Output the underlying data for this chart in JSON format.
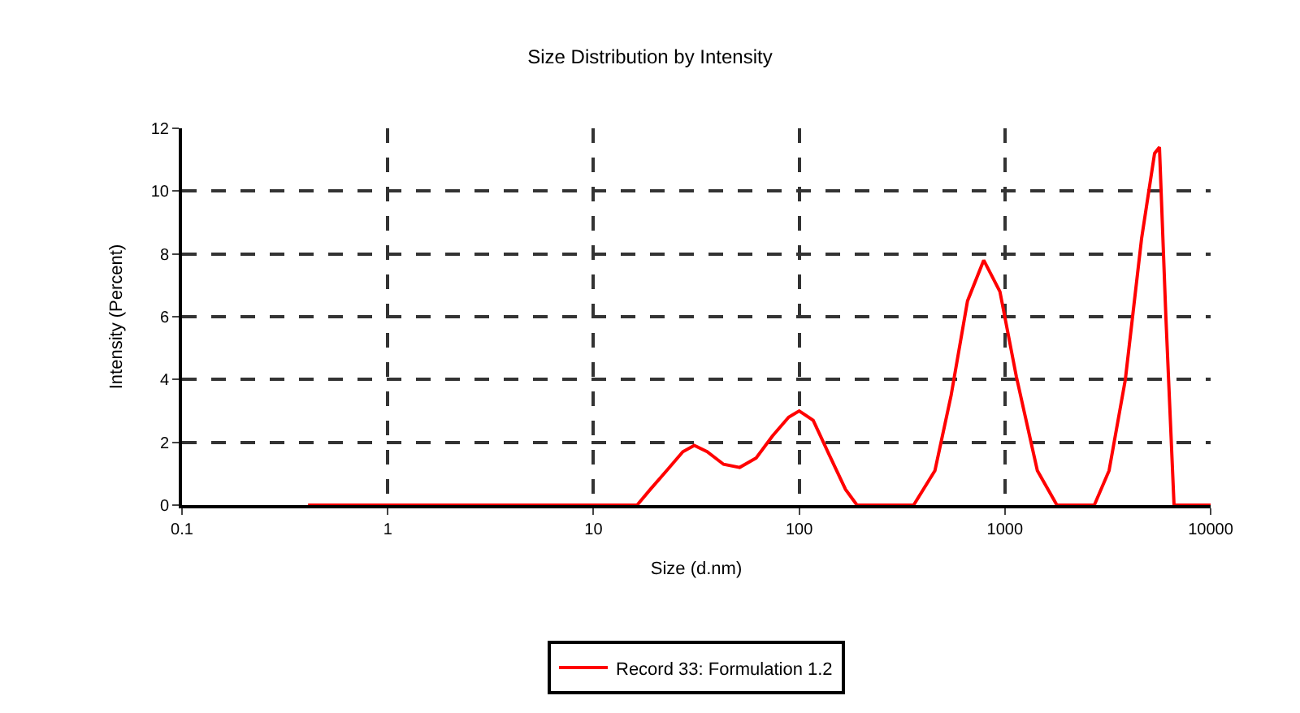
{
  "chart_data": {
    "type": "line",
    "title": "Size Distribution by Intensity",
    "xlabel": "Size (d.nm)",
    "ylabel": "Intensity (Percent)",
    "log": "x",
    "xlim": [
      0.1,
      10000
    ],
    "xticks": [
      0.1,
      1,
      10,
      100,
      1000,
      10000
    ],
    "ylim": [
      0,
      12
    ],
    "yticks": [
      0,
      2,
      4,
      6,
      8,
      10,
      12
    ],
    "grid": true,
    "legend": "bottom",
    "marker": "none",
    "line_style": "solid",
    "series": [
      {
        "name": "Record 33: Formulation 1.2",
        "color": "#ff0000",
        "x": [
          0.41,
          16.3,
          18.9,
          22.7,
          27.2,
          30.9,
          35.7,
          42.9,
          51.4,
          61.8,
          74.1,
          88.9,
          100,
          117,
          140,
          168,
          191,
          360,
          457,
          548,
          658,
          789,
          946,
          1136,
          1438,
          1790,
          2720,
          3210,
          3850,
          4620,
          5340,
          5640,
          6060,
          6640,
          10000
        ],
        "values": [
          0,
          0,
          0.5,
          1.1,
          1.7,
          1.9,
          1.7,
          1.3,
          1.2,
          1.5,
          2.2,
          2.8,
          3.0,
          2.7,
          1.6,
          0.5,
          0,
          0,
          1.1,
          3.5,
          6.5,
          7.8,
          6.8,
          4.1,
          1.1,
          0,
          0,
          1.1,
          4.0,
          8.5,
          11.2,
          11.4,
          6.0,
          0,
          0
        ]
      }
    ]
  }
}
